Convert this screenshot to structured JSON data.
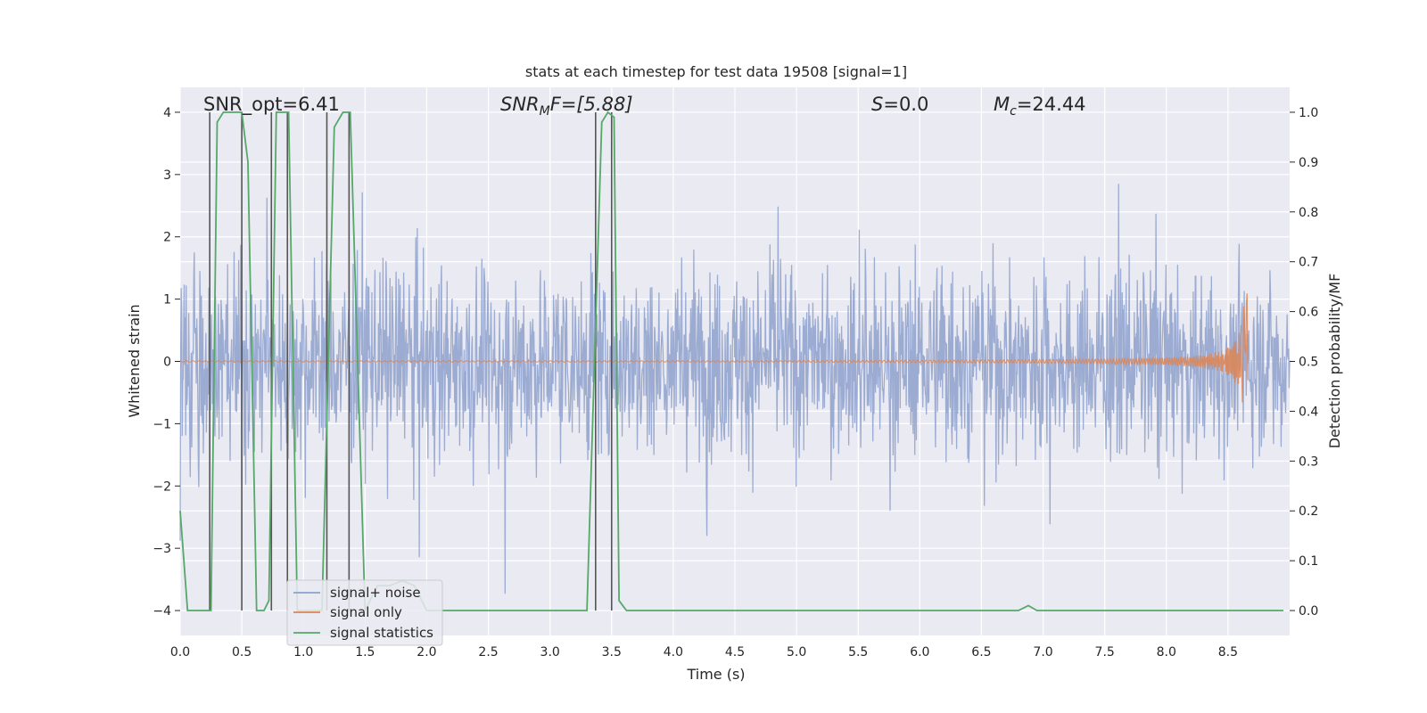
{
  "chart_data": {
    "type": "line",
    "title": "stats at each timestep for test data 19508 [signal=1]",
    "xlabel": "Time (s)",
    "ylabel_left": "Whitened strain",
    "ylabel_right": "Detection probability/MF",
    "xlim": [
      0.0,
      9.0
    ],
    "ylim_left": [
      -4.4,
      4.4
    ],
    "ylim_right": [
      -0.05,
      1.05
    ],
    "x_ticks": [
      "0.0",
      "0.5",
      "1.0",
      "1.5",
      "2.0",
      "2.5",
      "3.0",
      "3.5",
      "4.0",
      "4.5",
      "5.0",
      "5.5",
      "6.0",
      "6.5",
      "7.0",
      "7.5",
      "8.0",
      "8.5"
    ],
    "y_left_ticks": [
      "4",
      "3",
      "2",
      "1",
      "0",
      "−1",
      "−2",
      "−3",
      "−4"
    ],
    "y_right_ticks": [
      "1.0",
      "0.9",
      "0.8",
      "0.7",
      "0.6",
      "0.5",
      "0.4",
      "0.3",
      "0.2",
      "0.1",
      "0.0"
    ],
    "grid": true,
    "legend_position": "lower-left",
    "annotations": {
      "snr_opt": "SNR_opt=6.41",
      "snr_mf_main": "SNR",
      "snr_mf_sub": "M",
      "snr_mf_rest": "F=[5.88]",
      "s_label_var": "S",
      "s_label_rest": "=0.0",
      "mc_var": "M",
      "mc_sub": "c",
      "mc_rest": "=24.44"
    },
    "series": [
      {
        "name": "signal+ noise",
        "color": "#8da0cb",
        "style": "dense noise trace, amplitude roughly ±1.6 with spikes to ±4"
      },
      {
        "name": "signal only",
        "color": "#dd8452",
        "style": "chirp growing toward 8.65 s, peak about 1.5"
      },
      {
        "name": "signal statistics",
        "color": "#55a868"
      }
    ],
    "signal_statistics": {
      "t": [
        0.0,
        0.06,
        0.25,
        0.3,
        0.35,
        0.43,
        0.5,
        0.55,
        0.62,
        0.68,
        0.72,
        0.78,
        0.82,
        0.88,
        0.95,
        1.15,
        1.25,
        1.32,
        1.38,
        1.5,
        1.6,
        1.7,
        1.8,
        1.9,
        2.0,
        2.1,
        3.3,
        3.42,
        3.47,
        3.52,
        3.56,
        3.62,
        3.7,
        6.8,
        6.88,
        6.95,
        8.5,
        8.95
      ],
      "p": [
        0.2,
        0.0,
        0.0,
        0.98,
        1.0,
        1.0,
        1.0,
        0.9,
        0.0,
        0.0,
        0.02,
        1.0,
        1.0,
        1.0,
        0.0,
        0.0,
        0.97,
        1.0,
        1.0,
        0.0,
        0.05,
        0.05,
        0.06,
        0.05,
        0.0,
        0.0,
        0.0,
        0.98,
        1.0,
        0.99,
        0.02,
        0.0,
        0.0,
        0.0,
        0.01,
        0.0,
        0.0,
        0.0
      ]
    },
    "trigger_markers_s": [
      0.24,
      0.5,
      0.74,
      0.87,
      1.19,
      1.37,
      3.37,
      3.5
    ],
    "marker_color": "#555555"
  },
  "legend": {
    "items": [
      {
        "label": "signal+ noise",
        "color": "#8da0cb"
      },
      {
        "label": "signal only",
        "color": "#dd8452"
      },
      {
        "label": "signal statistics",
        "color": "#55a868"
      }
    ]
  },
  "colors": {
    "plot_background": "#eaeaf2",
    "grid": "#ffffff",
    "text": "#262626"
  }
}
